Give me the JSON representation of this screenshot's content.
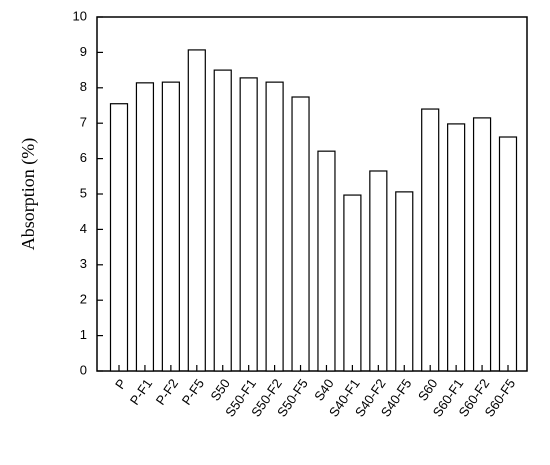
{
  "chart_data": {
    "type": "bar",
    "y_label": "Absorption (%)",
    "categories": [
      "P",
      "P-F1",
      "P-F2",
      "P-F5",
      "S50",
      "S50-F1",
      "S50-F2",
      "S50-F5",
      "S40",
      "S40-F1",
      "S40-F2",
      "S40-F5",
      "S60",
      "S60-F1",
      "S60-F2",
      "S60-F5"
    ],
    "values": [
      7.55,
      8.14,
      8.16,
      9.07,
      8.5,
      8.28,
      8.16,
      7.74,
      6.21,
      4.97,
      5.65,
      5.06,
      7.4,
      6.98,
      7.15,
      6.61
    ],
    "color": "#ffffff",
    "ylim": [
      0,
      10
    ],
    "yticks": [
      0,
      1,
      2,
      3,
      4,
      5,
      6,
      7,
      8,
      9,
      10
    ],
    "grid": false
  }
}
